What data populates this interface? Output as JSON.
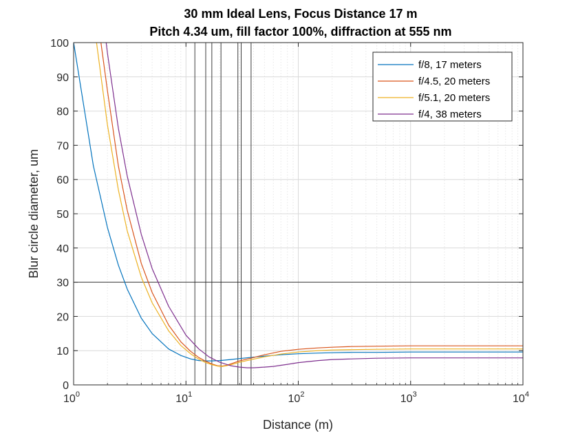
{
  "chart_data": {
    "type": "line",
    "title": [
      "30 mm Ideal Lens, Focus Distance 17 m",
      "Pitch 4.34 um, fill factor 100%, diffraction at 555 nm"
    ],
    "xlabel": "Distance (m)",
    "ylabel": "Blur circle diameter, um",
    "xscale": "log",
    "xlim": [
      1,
      10000
    ],
    "ylim": [
      0,
      100
    ],
    "xticks": [
      {
        "base": "10",
        "exp": "0"
      },
      {
        "base": "10",
        "exp": "1"
      },
      {
        "base": "10",
        "exp": "2"
      },
      {
        "base": "10",
        "exp": "3"
      },
      {
        "base": "10",
        "exp": "4"
      }
    ],
    "yticks": [
      0,
      10,
      20,
      30,
      40,
      50,
      60,
      70,
      80,
      90,
      100
    ],
    "grid": true,
    "minor_grid": true,
    "legend_position": "top-right",
    "reference_lines": {
      "horizontal": [
        30
      ],
      "vertical": [
        12,
        15,
        17,
        20.5,
        29,
        31,
        38
      ]
    },
    "series": [
      {
        "name": "f/8, 17 meters",
        "color": "#0072BD",
        "x": [
          1,
          1.5,
          2,
          2.5,
          3,
          4,
          5,
          7,
          9,
          11,
          13,
          15,
          17,
          20,
          25,
          30,
          40,
          50,
          70,
          100,
          150,
          200,
          300,
          500,
          1000,
          2000,
          5000,
          10000
        ],
        "y": [
          100,
          64,
          46,
          35,
          28,
          19.5,
          15,
          10.5,
          8.6,
          7.6,
          7.1,
          7.0,
          7.0,
          7.1,
          7.4,
          7.7,
          8.1,
          8.4,
          8.8,
          9.1,
          9.3,
          9.4,
          9.5,
          9.5,
          9.6,
          9.6,
          9.6,
          9.6
        ]
      },
      {
        "name": "f/4.5, 20 meters",
        "color": "#D95319",
        "x": [
          1.75,
          2,
          2.5,
          3,
          4,
          5,
          7,
          9,
          11,
          13,
          15,
          17,
          19,
          21,
          23,
          26,
          30,
          40,
          50,
          70,
          100,
          150,
          200,
          300,
          500,
          1000,
          2000,
          5000,
          10000
        ],
        "y": [
          100,
          86,
          64,
          51,
          35.5,
          27,
          17.5,
          12.6,
          9.8,
          8.0,
          6.9,
          6.1,
          5.6,
          5.5,
          5.7,
          6.3,
          7.0,
          8.0,
          8.8,
          9.8,
          10.4,
          10.8,
          11.0,
          11.2,
          11.3,
          11.4,
          11.4,
          11.4,
          11.4
        ]
      },
      {
        "name": "f/5.1, 20 meters",
        "color": "#EDB120",
        "x": [
          1.6,
          2,
          2.5,
          3,
          4,
          5,
          7,
          9,
          11,
          13,
          15,
          17,
          19,
          21,
          23,
          26,
          30,
          40,
          50,
          70,
          100,
          150,
          200,
          300,
          500,
          1000,
          2000,
          5000,
          10000
        ],
        "y": [
          100,
          76,
          57,
          45,
          31.5,
          24,
          15.8,
          11.5,
          9.1,
          7.5,
          6.5,
          5.9,
          5.5,
          5.4,
          5.6,
          6.0,
          6.6,
          7.5,
          8.2,
          9.0,
          9.6,
          10.0,
          10.2,
          10.3,
          10.4,
          10.5,
          10.5,
          10.5,
          10.5
        ]
      },
      {
        "name": "f/4, 38 meters",
        "color": "#7E2F8E",
        "x": [
          1.95,
          2,
          2.5,
          3,
          4,
          5,
          7,
          10,
          13,
          16,
          20,
          25,
          30,
          35,
          40,
          50,
          60,
          80,
          100,
          150,
          200,
          300,
          500,
          1000,
          2000,
          5000,
          10000
        ],
        "y": [
          100,
          97,
          75,
          61,
          44,
          34,
          23,
          14.5,
          10.5,
          8.2,
          6.6,
          5.6,
          5.2,
          5.0,
          5.0,
          5.2,
          5.4,
          6.0,
          6.5,
          7.1,
          7.4,
          7.6,
          7.8,
          7.9,
          7.9,
          7.9,
          7.9
        ]
      }
    ]
  }
}
